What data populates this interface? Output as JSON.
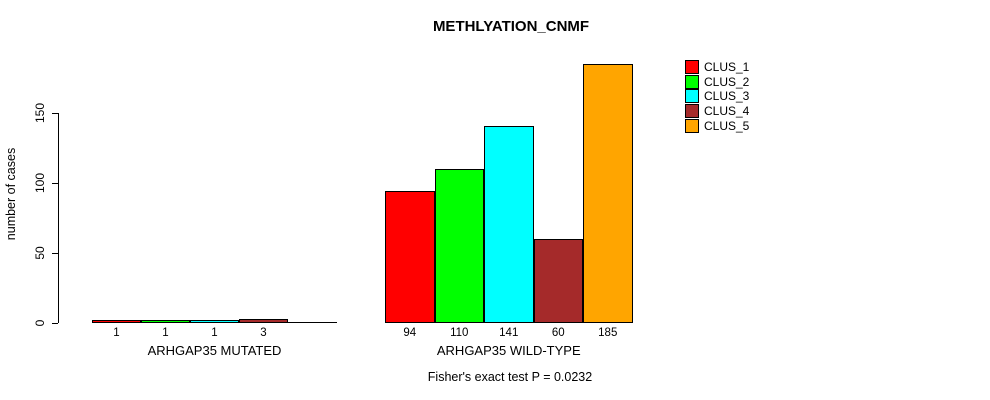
{
  "chart_data": {
    "type": "bar",
    "title": "METHLYATION_CNMF",
    "ylabel": "number of cases",
    "xlabel": "",
    "ylim": [
      0,
      150
    ],
    "y_ticks": [
      0,
      50,
      100,
      150
    ],
    "grid": false,
    "legend_position": "right",
    "clusters": [
      {
        "name": "CLUS_1",
        "color": "#FF0000"
      },
      {
        "name": "CLUS_2",
        "color": "#00FF00"
      },
      {
        "name": "CLUS_3",
        "color": "#00FFFF"
      },
      {
        "name": "CLUS_4",
        "color": "#A52A2A"
      },
      {
        "name": "CLUS_5",
        "color": "#FFA500"
      }
    ],
    "groups": [
      {
        "label": "ARHGAP35 MUTATED",
        "values": [
          1,
          1,
          1,
          3,
          0
        ],
        "value_labels": [
          "1",
          "1",
          "1",
          "3",
          ""
        ]
      },
      {
        "label": "ARHGAP35 WILD-TYPE",
        "values": [
          94,
          110,
          141,
          60,
          185
        ],
        "value_labels": [
          "94",
          "110",
          "141",
          "60",
          "185"
        ]
      }
    ],
    "annotation": "Fisher's exact test P = 0.0232"
  }
}
